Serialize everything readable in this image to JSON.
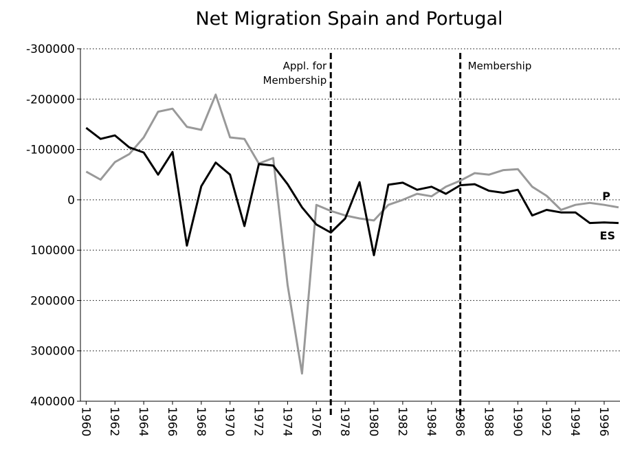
{
  "chart_data": {
    "type": "line",
    "title": "Net Migration Spain and Portugal",
    "x": [
      1960,
      1961,
      1962,
      1963,
      1964,
      1965,
      1966,
      1967,
      1968,
      1969,
      1970,
      1971,
      1972,
      1973,
      1974,
      1975,
      1976,
      1977,
      1978,
      1979,
      1980,
      1981,
      1982,
      1983,
      1984,
      1985,
      1986,
      1987,
      1988,
      1989,
      1990,
      1991,
      1992,
      1993,
      1994,
      1995,
      1996,
      1997
    ],
    "series": [
      {
        "name": "ES",
        "color": "#000000",
        "values": [
          -143000,
          -121000,
          -128000,
          -104000,
          -94000,
          -50000,
          -95000,
          91000,
          -27000,
          -74000,
          -50000,
          52000,
          -71000,
          -68000,
          -31000,
          15000,
          49000,
          65000,
          37000,
          -35000,
          110000,
          -30000,
          -34000,
          -20000,
          -26000,
          -12000,
          -29000,
          -31000,
          -18000,
          -14000,
          -20000,
          31000,
          20000,
          25000,
          25000,
          46000,
          45000,
          46000
        ]
      },
      {
        "name": "P",
        "color": "#999999",
        "values": [
          -56000,
          -40000,
          -75000,
          -91000,
          -124000,
          -175000,
          -181000,
          -145000,
          -139000,
          -209000,
          -124000,
          -121000,
          -72000,
          -83000,
          169000,
          345000,
          10000,
          22000,
          31000,
          37000,
          41000,
          10000,
          0,
          -12000,
          -7000,
          -26000,
          -38000,
          -53000,
          -50000,
          -59000,
          -61000,
          -26000,
          -8000,
          20000,
          10000,
          6000,
          10000,
          15000
        ]
      }
    ],
    "annotations": [
      {
        "x": 1977,
        "lines": [
          "Appl. for",
          "Membership"
        ]
      },
      {
        "x": 1986,
        "lines": [
          "Membership"
        ]
      }
    ],
    "xlim": [
      1959.6,
      1997.1
    ],
    "xticks": [
      1960,
      1962,
      1964,
      1966,
      1968,
      1970,
      1972,
      1974,
      1976,
      1978,
      1980,
      1982,
      1984,
      1986,
      1988,
      1990,
      1992,
      1994,
      1996
    ],
    "ylim": [
      400000,
      -300000
    ],
    "yticks": [
      -300000,
      -200000,
      -100000,
      0,
      100000,
      200000,
      300000,
      400000
    ],
    "grid": true
  }
}
